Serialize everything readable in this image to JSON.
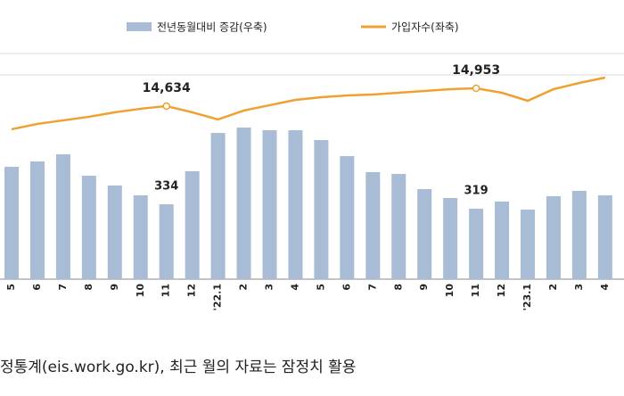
{
  "chart_data": {
    "type": "combo",
    "categories": [
      "5",
      "6",
      "7",
      "8",
      "9",
      "10",
      "11",
      "12",
      "'22.1",
      "2",
      "3",
      "4",
      "5",
      "6",
      "7",
      "8",
      "9",
      "10",
      "11",
      "12",
      "'23.1",
      "2",
      "3",
      "4"
    ],
    "series": [
      {
        "name": "전년동월대비 증감(우축)",
        "type": "bar",
        "axis": "y2",
        "color": "#a9bcd6",
        "values": [
          460,
          478,
          502,
          430,
          397,
          364,
          334,
          445,
          574,
          592,
          583,
          583,
          550,
          496,
          442,
          436,
          385,
          355,
          319,
          343,
          316,
          361,
          379,
          364
        ],
        "value_labels": [
          null,
          null,
          null,
          null,
          null,
          null,
          "334",
          null,
          null,
          null,
          null,
          null,
          null,
          null,
          null,
          null,
          null,
          null,
          "319",
          null,
          null,
          null,
          null,
          null
        ]
      },
      {
        "name": "가입자수(좌축)",
        "type": "line",
        "color": "#f0a030",
        "values": [
          14218,
          14314,
          14378,
          14442,
          14522,
          14586,
          14634,
          14522,
          14394,
          14554,
          14650,
          14745,
          14793,
          14825,
          14841,
          14873,
          14905,
          14937,
          14953,
          14873,
          14729,
          14937,
          15049,
          15145
        ],
        "value_labels": [
          null,
          null,
          null,
          null,
          null,
          null,
          "14,634",
          null,
          null,
          null,
          null,
          null,
          null,
          null,
          null,
          null,
          null,
          null,
          "14,953",
          null,
          null,
          null,
          null,
          null
        ]
      }
    ],
    "ylim": [
      11529,
      15577
    ],
    "y2lim": [
      82,
      841
    ],
    "footnote": "정통계(eis.work.go.kr), 최근 월의 자료는 잠정치 활용"
  }
}
